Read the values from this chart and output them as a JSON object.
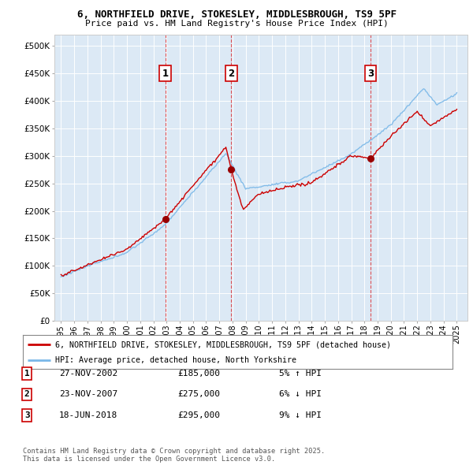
{
  "title1": "6, NORTHFIELD DRIVE, STOKESLEY, MIDDLESBROUGH, TS9 5PF",
  "title2": "Price paid vs. HM Land Registry's House Price Index (HPI)",
  "plot_bg_color": "#dce9f5",
  "fig_bg_color": "#ffffff",
  "red_line_label": "6, NORTHFIELD DRIVE, STOKESLEY, MIDDLESBROUGH, TS9 5PF (detached house)",
  "blue_line_label": "HPI: Average price, detached house, North Yorkshire",
  "transactions": [
    {
      "num": 1,
      "date": "27-NOV-2002",
      "price": 185000,
      "pct": "5%",
      "dir": "↑",
      "x_year": 2002.917
    },
    {
      "num": 2,
      "date": "23-NOV-2007",
      "price": 275000,
      "pct": "6%",
      "dir": "↓",
      "x_year": 2007.897
    },
    {
      "num": 3,
      "date": "18-JUN-2018",
      "price": 295000,
      "pct": "9%",
      "dir": "↓",
      "x_year": 2018.463
    }
  ],
  "copyright": "Contains HM Land Registry data © Crown copyright and database right 2025.\nThis data is licensed under the Open Government Licence v3.0.",
  "yticks": [
    0,
    50000,
    100000,
    150000,
    200000,
    250000,
    300000,
    350000,
    400000,
    450000,
    500000
  ],
  "xlim_start": 1994.5,
  "xlim_end": 2025.8
}
